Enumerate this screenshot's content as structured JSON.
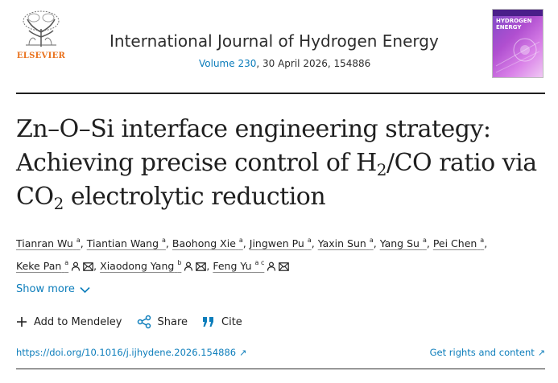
{
  "header": {
    "publisher": "ELSEVIER",
    "journal_title": "International Journal of Hydrogen Energy",
    "volume_link": "Volume 230",
    "issue_rest": ", 30 April 2026, 154886",
    "cover_text": "HYDROGEN ENERGY"
  },
  "article": {
    "title_l1": "Zn–O–Si interface engineering strategy:",
    "title_l2a": "Achieving precise control of H",
    "title_l2_sub": "2",
    "title_l2b": "/CO ratio via",
    "title_l3a": "CO",
    "title_l3_sub": "2",
    "title_l3b": " electrolytic reduction"
  },
  "authors": [
    {
      "name": "Tianran Wu",
      "aff": "a"
    },
    {
      "name": "Tiantian Wang",
      "aff": "a"
    },
    {
      "name": "Baohong Xie",
      "aff": "a"
    },
    {
      "name": "Jingwen Pu",
      "aff": "a"
    },
    {
      "name": "Yaxin Sun",
      "aff": "a"
    },
    {
      "name": "Yang Su",
      "aff": "a"
    },
    {
      "name": "Pei Chen",
      "aff": "a"
    },
    {
      "name": "Keke Pan",
      "aff": "a"
    },
    {
      "name": "Xiaodong Yang",
      "aff": "b"
    },
    {
      "name": "Feng Yu",
      "aff": "a c"
    }
  ],
  "separator": ",",
  "show_more": "Show more",
  "actions": {
    "mendeley": "Add to Mendeley",
    "share": "Share",
    "cite": "Cite"
  },
  "links": {
    "doi": "https://doi.org/10.1016/j.ijhydene.2026.154886",
    "rights": "Get rights and content"
  },
  "colors": {
    "link": "#0c7dbb",
    "brand": "#e9711c"
  }
}
